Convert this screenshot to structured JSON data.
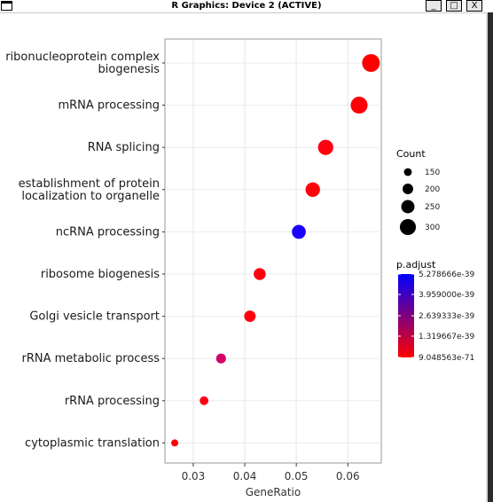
{
  "window": {
    "title": "R Graphics: Device 2 (ACTIVE)",
    "buttons": {
      "minimize": "_",
      "maximize": "□",
      "close": "X"
    }
  },
  "chart_data": {
    "type": "scatter",
    "xlabel": "GeneRatio",
    "xlim": [
      0.0245,
      0.0665
    ],
    "xticks": [
      0.03,
      0.04,
      0.05,
      0.06
    ],
    "xtick_labels": [
      "0.03",
      "0.04",
      "0.05",
      "0.06"
    ],
    "grid": true,
    "categories": [
      "ribonucleoprotein complex\nbiogenesis",
      "mRNA processing",
      "RNA splicing",
      "establishment of protein\nlocalization to organelle",
      "ncRNA processing",
      "ribosome biogenesis",
      "Golgi vesicle transport",
      "rRNA metabolic process",
      "rRNA processing",
      "cytoplasmic translation"
    ],
    "points": [
      {
        "x": 0.0645,
        "count": 315,
        "color": "#ff0000"
      },
      {
        "x": 0.0622,
        "count": 300,
        "color": "#ff0008"
      },
      {
        "x": 0.0557,
        "count": 270,
        "color": "#ff0010"
      },
      {
        "x": 0.0532,
        "count": 255,
        "color": "#ff000a"
      },
      {
        "x": 0.0505,
        "count": 245,
        "color": "#1a00ff"
      },
      {
        "x": 0.0429,
        "count": 210,
        "color": "#ff0010"
      },
      {
        "x": 0.041,
        "count": 200,
        "color": "#ff000c"
      },
      {
        "x": 0.0354,
        "count": 170,
        "color": "#d4006a"
      },
      {
        "x": 0.0321,
        "count": 150,
        "color": "#ff0014"
      },
      {
        "x": 0.0264,
        "count": 120,
        "color": "#ff0000"
      }
    ],
    "legend_placement": "right",
    "size_legend": {
      "title": "Count",
      "values": [
        150,
        200,
        250,
        300
      ],
      "labels": [
        "150",
        "200",
        "250",
        "300"
      ]
    },
    "color_legend": {
      "title": "p.adjust",
      "low_color": "#ff0000",
      "high_color": "#0000ff",
      "labels": [
        "5.278666e-39",
        "3.959000e-39",
        "2.639333e-39",
        "1.319667e-39",
        "9.048563e-71"
      ]
    }
  }
}
